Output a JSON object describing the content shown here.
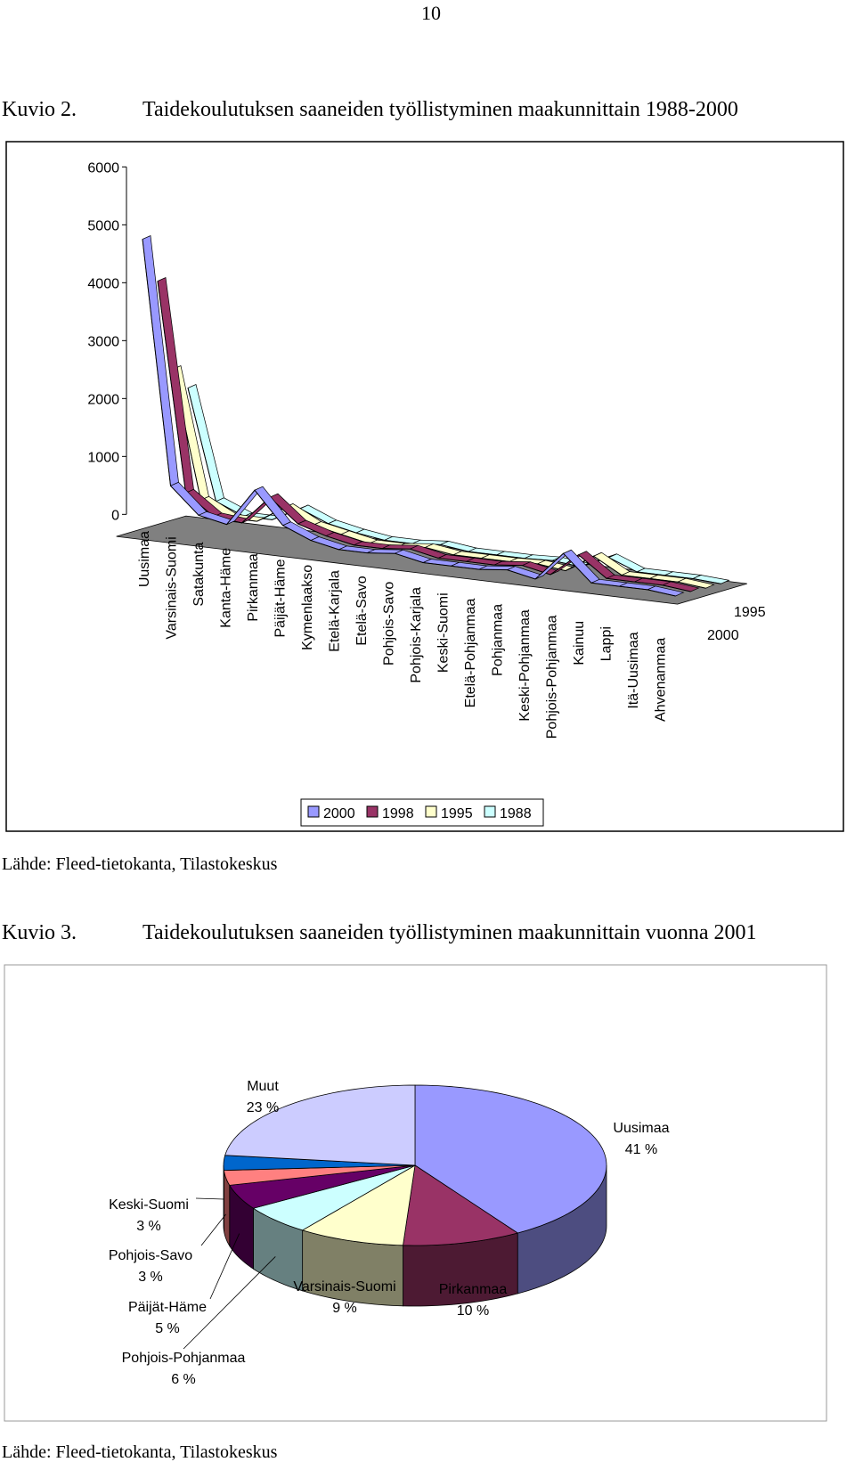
{
  "page_number": "10",
  "chart_data": [
    {
      "type": "line",
      "label": "Kuvio 2.",
      "title": "Taidekoulutuksen saaneiden työllistyminen maakunnittain 1988-2000",
      "source": "Lähde: Fleed-tietokanta, Tilastokeskus",
      "categories": [
        "Uusimaa",
        "Varsinais-Suomi",
        "Satakunta",
        "Kanta-Häme",
        "Pirkanmaa",
        "Päijät-Häme",
        "Kymenlaakso",
        "Etelä-Karjala",
        "Etelä-Savo",
        "Pohjois-Savo",
        "Pohjois-Karjala",
        "Keski-Suomi",
        "Etelä-Pohjanmaa",
        "Pohjanmaa",
        "Keski-Pohjanmaa",
        "Pohjois-Pohjanmaa",
        "Kainuu",
        "Lappi",
        "Itä-Uusimaa",
        "Ahvenanmaa"
      ],
      "series": [
        {
          "name": "2000",
          "color": "#9999ff",
          "values": [
            5100,
            900,
            450,
            350,
            1000,
            450,
            250,
            150,
            150,
            200,
            100,
            100,
            100,
            150,
            50,
            550,
            100,
            100,
            100,
            50
          ]
        },
        {
          "name": "1998",
          "color": "#993366",
          "values": [
            4300,
            700,
            350,
            300,
            800,
            400,
            250,
            150,
            150,
            200,
            100,
            100,
            100,
            150,
            50,
            450,
            100,
            100,
            100,
            50
          ]
        },
        {
          "name": "1995",
          "color": "#ffffcc",
          "values": [
            2700,
            500,
            250,
            250,
            550,
            300,
            200,
            100,
            100,
            150,
            80,
            80,
            80,
            100,
            40,
            350,
            80,
            80,
            80,
            30
          ]
        },
        {
          "name": "1988",
          "color": "#ccffff",
          "values": [
            2300,
            400,
            200,
            200,
            450,
            250,
            150,
            80,
            80,
            120,
            60,
            60,
            60,
            80,
            30,
            250,
            60,
            60,
            60,
            30
          ]
        }
      ],
      "ylim": [
        0,
        6000
      ],
      "yticks": [
        0,
        1000,
        2000,
        3000,
        4000,
        5000,
        6000
      ],
      "legend": "bottom"
    },
    {
      "type": "pie",
      "label": "Kuvio 3.",
      "title": "Taidekoulutuksen saaneiden työllistyminen maakunnittain vuonna 2001",
      "source": "Lähde: Fleed-tietokanta, Tilastokeskus",
      "labels": [
        "Uusimaa",
        "Pirkanmaa",
        "Varsinais-Suomi",
        "Pohjois-Pohjanmaa",
        "Päijät-Häme",
        "Pohjois-Savo",
        "Keski-Suomi",
        "Muut"
      ],
      "values": [
        41,
        10,
        9,
        6,
        5,
        3,
        3,
        23
      ],
      "value_labels": [
        "41 %",
        "10 %",
        "9 %",
        "6 %",
        "5 %",
        "3 %",
        "3 %",
        "23 %"
      ],
      "colors": [
        "#9999ff",
        "#993366",
        "#ffffcc",
        "#ccffff",
        "#660066",
        "#ff8080",
        "#0066cc",
        "#ccccff"
      ]
    }
  ]
}
